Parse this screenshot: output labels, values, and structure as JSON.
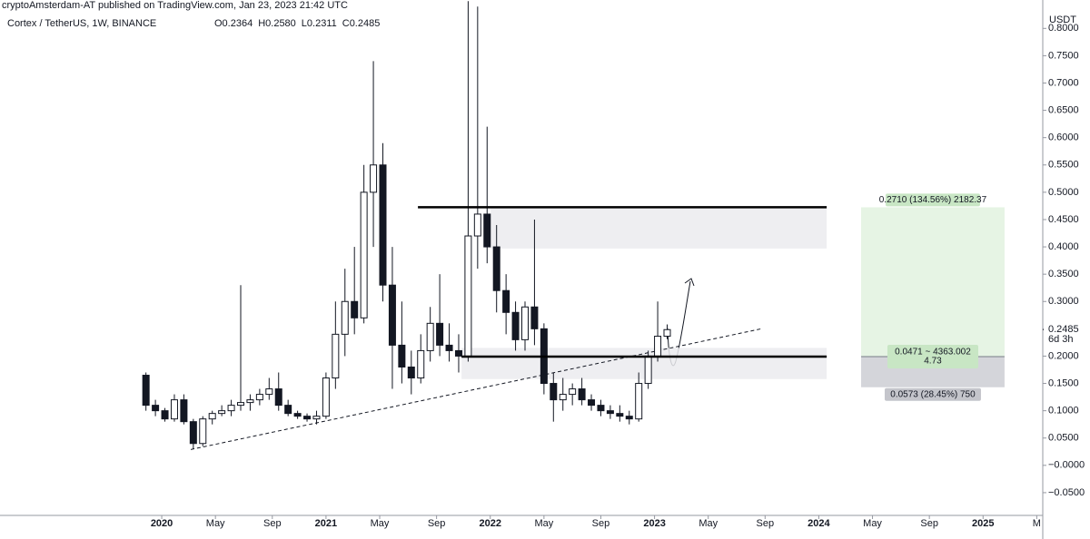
{
  "chart_data": {
    "type": "candlestick",
    "publisher": "cryptoAmsterdam-AT published on TradingView.com, Jan 23, 2023 21:42 UTC",
    "title": "Cortex / TetherUS, 1W, BINANCE",
    "ohlc_labels": [
      "O0.2364",
      "H0.2580",
      "L0.2311",
      "C0.2485"
    ],
    "unit": "USDT",
    "x": [
      -5,
      -2,
      1,
      4,
      7,
      10,
      13,
      16,
      19,
      22,
      25,
      28,
      31,
      34,
      37,
      40,
      43,
      46,
      49,
      52,
      55,
      58,
      61,
      64,
      67,
      70,
      73,
      76,
      79,
      82,
      85,
      88,
      91,
      94,
      97,
      100,
      103,
      106,
      109,
      112,
      115,
      118,
      121,
      124,
      127,
      130,
      133,
      136,
      139,
      142,
      145,
      148,
      151,
      154,
      157,
      160
    ],
    "open": [
      0.165,
      0.11,
      0.1,
      0.085,
      0.12,
      0.08,
      0.04,
      0.085,
      0.095,
      0.1,
      0.11,
      0.115,
      0.12,
      0.13,
      0.14,
      0.11,
      0.095,
      0.09,
      0.085,
      0.09,
      0.16,
      0.24,
      0.3,
      0.27,
      0.5,
      0.55,
      0.33,
      0.22,
      0.18,
      0.16,
      0.21,
      0.26,
      0.22,
      0.21,
      0.2,
      0.42,
      0.46,
      0.4,
      0.32,
      0.28,
      0.23,
      0.29,
      0.25,
      0.15,
      0.12,
      0.13,
      0.14,
      0.12,
      0.11,
      0.1,
      0.095,
      0.09,
      0.085,
      0.15,
      0.2,
      0.2364
    ],
    "high": [
      0.17,
      0.12,
      0.105,
      0.13,
      0.13,
      0.085,
      0.09,
      0.1,
      0.11,
      0.12,
      0.33,
      0.13,
      0.14,
      0.16,
      0.17,
      0.12,
      0.1,
      0.095,
      0.1,
      0.17,
      0.3,
      0.36,
      0.4,
      0.55,
      0.74,
      0.59,
      0.4,
      0.3,
      0.21,
      0.24,
      0.29,
      0.35,
      0.26,
      0.24,
      0.85,
      0.84,
      0.62,
      0.44,
      0.35,
      0.3,
      0.3,
      0.45,
      0.26,
      0.17,
      0.16,
      0.15,
      0.16,
      0.13,
      0.12,
      0.11,
      0.11,
      0.1,
      0.17,
      0.21,
      0.3,
      0.258
    ],
    "low": [
      0.1,
      0.09,
      0.08,
      0.08,
      0.075,
      0.03,
      0.035,
      0.075,
      0.09,
      0.09,
      0.1,
      0.1,
      0.11,
      0.12,
      0.1,
      0.09,
      0.085,
      0.08,
      0.075,
      0.085,
      0.14,
      0.2,
      0.24,
      0.26,
      0.4,
      0.3,
      0.14,
      0.15,
      0.13,
      0.15,
      0.19,
      0.2,
      0.19,
      0.17,
      0.19,
      0.36,
      0.37,
      0.28,
      0.24,
      0.21,
      0.21,
      0.22,
      0.13,
      0.08,
      0.1,
      0.11,
      0.11,
      0.1,
      0.09,
      0.085,
      0.08,
      0.075,
      0.08,
      0.14,
      0.19,
      0.2311
    ],
    "close": [
      0.11,
      0.1,
      0.085,
      0.12,
      0.08,
      0.04,
      0.085,
      0.095,
      0.1,
      0.11,
      0.115,
      0.12,
      0.13,
      0.14,
      0.11,
      0.095,
      0.09,
      0.085,
      0.09,
      0.16,
      0.24,
      0.3,
      0.27,
      0.5,
      0.55,
      0.33,
      0.22,
      0.18,
      0.16,
      0.21,
      0.26,
      0.22,
      0.21,
      0.2,
      0.42,
      0.46,
      0.4,
      0.32,
      0.28,
      0.23,
      0.29,
      0.25,
      0.15,
      0.12,
      0.13,
      0.14,
      0.12,
      0.11,
      0.1,
      0.095,
      0.09,
      0.085,
      0.15,
      0.2,
      0.2364,
      0.2485
    ],
    "xlim": [
      -51.2,
      278.9
    ],
    "xticks": [
      {
        "value": 0,
        "label": "2020"
      },
      {
        "value": 17,
        "label": "May"
      },
      {
        "value": 35,
        "label": "Sep"
      },
      {
        "value": 52,
        "label": "2021"
      },
      {
        "value": 69,
        "label": "May"
      },
      {
        "value": 87,
        "label": "Sep"
      },
      {
        "value": 104,
        "label": "2022"
      },
      {
        "value": 121,
        "label": "May"
      },
      {
        "value": 139,
        "label": "Sep"
      },
      {
        "value": 156,
        "label": "2023"
      },
      {
        "value": 173,
        "label": "May"
      },
      {
        "value": 191,
        "label": "Sep"
      },
      {
        "value": 208,
        "label": "2024"
      },
      {
        "value": 225,
        "label": "May"
      },
      {
        "value": 243,
        "label": "Sep"
      },
      {
        "value": 260,
        "label": "2025"
      },
      {
        "value": 277,
        "label": "M"
      }
    ],
    "ylim": [
      -0.09,
      0.852
    ],
    "yticks": [
      {
        "value": 0.8,
        "label": "0.8000"
      },
      {
        "value": 0.75,
        "label": "0.7500"
      },
      {
        "value": 0.7,
        "label": "0.7000"
      },
      {
        "value": 0.65,
        "label": "0.6500"
      },
      {
        "value": 0.6,
        "label": "0.6000"
      },
      {
        "value": 0.55,
        "label": "0.5500"
      },
      {
        "value": 0.5,
        "label": "0.5000"
      },
      {
        "value": 0.45,
        "label": "0.4500"
      },
      {
        "value": 0.4,
        "label": "0.4000"
      },
      {
        "value": 0.35,
        "label": "0.3500"
      },
      {
        "value": 0.3,
        "label": "0.3000"
      },
      {
        "value": 0.25,
        "label": "0.2500"
      },
      {
        "value": 0.2,
        "label": "0.2000"
      },
      {
        "value": 0.15,
        "label": "0.1500"
      },
      {
        "value": 0.1,
        "label": "0.1000"
      },
      {
        "value": 0.05,
        "label": "0.0500"
      },
      {
        "value": 0,
        "label": "−0.0000"
      },
      {
        "value": -0.05,
        "label": "−0.0500"
      }
    ],
    "last_price": 0.2485,
    "countdown": "6d 3h",
    "zones": [
      {
        "x": [
          104.1,
          210.5
        ],
        "y": [
          0.397,
          0.47
        ]
      },
      {
        "x": [
          94.9,
          210.5
        ],
        "y": [
          0.158,
          0.215
        ]
      }
    ],
    "levels": [
      {
        "x": [
          81.1,
          210.5
        ],
        "y": 0.4725
      },
      {
        "x": [
          94.9,
          210.5
        ],
        "y": 0.199
      }
    ],
    "trendline": {
      "x": [
        9.2,
        189.8
      ],
      "y": [
        0.029,
        0.25
      ]
    },
    "position": {
      "x": [
        221.4,
        266.8
      ],
      "entry": 0.199,
      "target": 0.4725,
      "stop": 0.143,
      "target_label": "0.2710 (134.56%) 2182.37",
      "entry_label": [
        "0.0471 ~ 4363.002",
        "4.73"
      ],
      "stop_label": "0.0573 (28.45%) 750"
    }
  }
}
